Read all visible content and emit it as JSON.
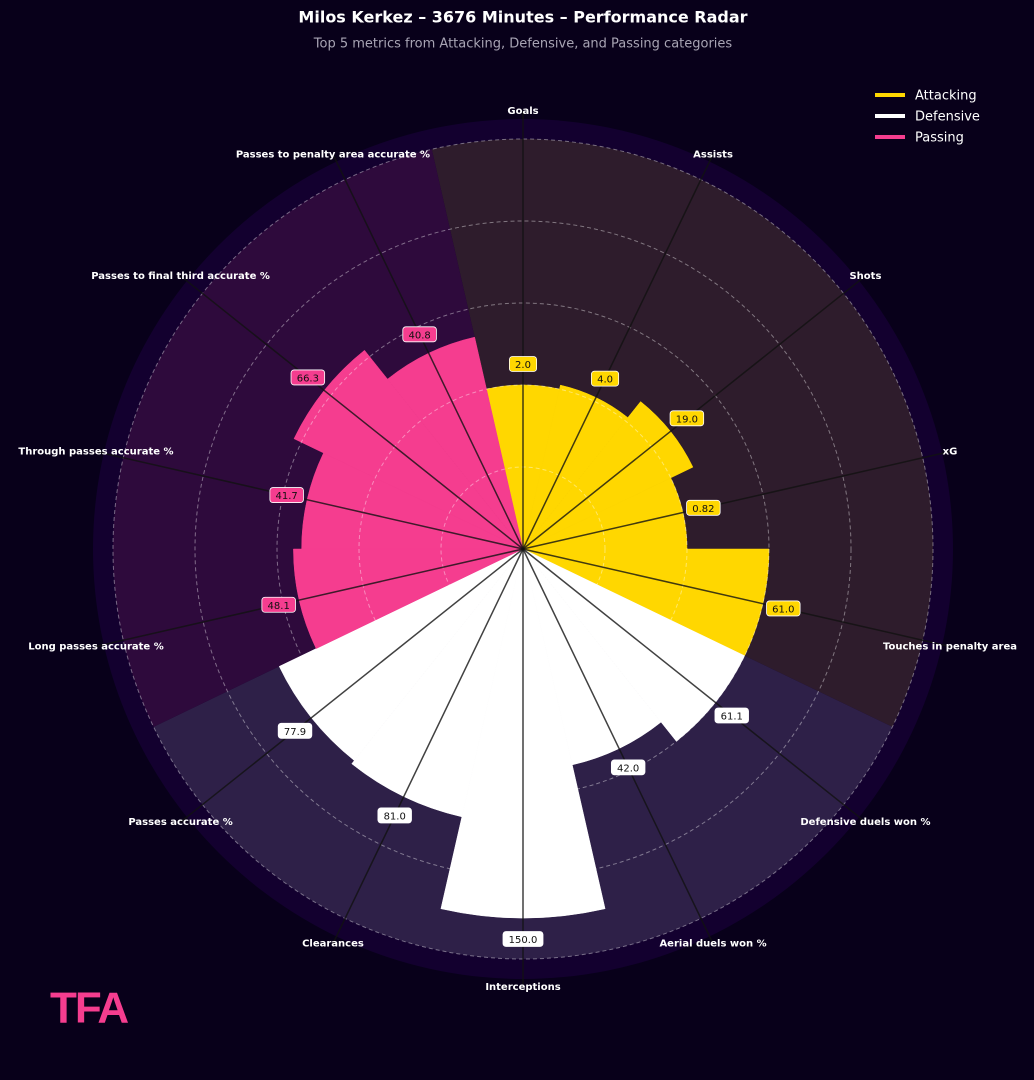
{
  "chart_data": {
    "type": "polar_bar",
    "title": "Milos Kerkez – 3676 Minutes – Performance Radar",
    "subtitle": "Top 5 metrics from Attacking, Defensive, and Passing categories",
    "rlim": [
      0,
      100
    ],
    "rticks": [
      20,
      40,
      60,
      80,
      100
    ],
    "grid": true,
    "legend": "upper right",
    "series": [
      {
        "name": "Attacking",
        "color": "#ffd700",
        "sector_color": "#2e1c2c",
        "categories": [
          "Goals",
          "Assists",
          "Shots",
          "xG",
          "Touches in penalty area"
        ],
        "values": [
          2.0,
          4.0,
          19.0,
          0.82,
          61.0
        ],
        "value_labels": [
          "2.0",
          "4.0",
          "19.0",
          "0.82",
          "61.0"
        ],
        "scores": [
          40,
          41,
          46,
          40,
          60
        ]
      },
      {
        "name": "Defensive",
        "color": "#ffffff",
        "sector_color": "#2e2048",
        "categories": [
          "Defensive duels won %",
          "Aerial duels won %",
          "Interceptions",
          "Clearances",
          "Passes accurate %"
        ],
        "values": [
          61.1,
          42.0,
          150.0,
          81.0,
          77.9
        ],
        "value_labels": [
          "61.1",
          "42.0",
          "150.0",
          "81.0",
          "77.9"
        ],
        "scores": [
          60,
          54,
          90,
          67,
          66
        ]
      },
      {
        "name": "Passing",
        "color": "#f53d8f",
        "sector_color": "#2e0a3c",
        "categories": [
          "Long passes accurate %",
          "Through passes accurate %",
          "Passes to final third accurate %",
          "Passes to penalty area accurate %"
        ],
        "values": [
          48.1,
          41.7,
          66.3,
          40.8
        ],
        "value_labels": [
          "48.1",
          "41.7",
          "66.3",
          "40.8"
        ],
        "scores": [
          56,
          54,
          62,
          53
        ]
      }
    ],
    "logo": "TFA"
  }
}
